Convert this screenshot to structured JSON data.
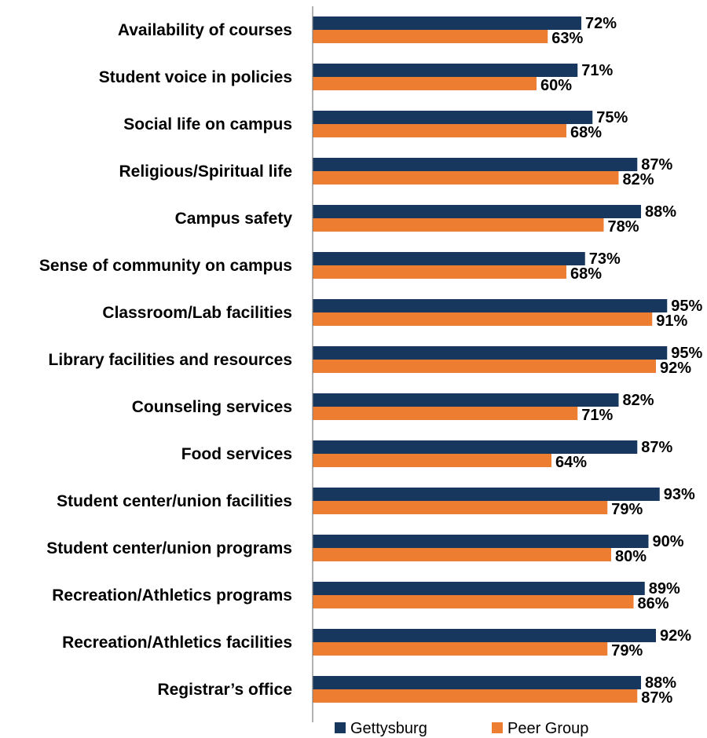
{
  "chart_data": {
    "type": "bar",
    "orientation": "horizontal",
    "categories": [
      "Availability of courses",
      "Student voice in policies",
      "Social life on campus",
      "Religious/Spiritual life",
      "Campus safety",
      "Sense of community on campus",
      "Classroom/Lab facilities",
      "Library facilities and resources",
      "Counseling services",
      "Food services",
      "Student center/union facilities",
      "Student center/union programs",
      "Recreation/Athletics programs",
      "Recreation/Athletics facilities",
      "Registrar’s office"
    ],
    "series": [
      {
        "name": "Gettysburg",
        "color": "#17375e",
        "values": [
          72,
          71,
          75,
          87,
          88,
          73,
          95,
          95,
          82,
          87,
          93,
          90,
          89,
          92,
          88
        ],
        "labels": [
          "72%",
          "71%",
          "75%",
          "87%",
          "88%",
          "73%",
          "95%",
          "95%",
          "82%",
          "87%",
          "93%",
          "90%",
          "89%",
          "92%",
          "88%"
        ]
      },
      {
        "name": "Peer Group",
        "color": "#ed7d31",
        "values": [
          63,
          60,
          68,
          82,
          78,
          68,
          91,
          92,
          71,
          64,
          79,
          80,
          86,
          79,
          87
        ],
        "labels": [
          "63%",
          "60%",
          "68%",
          "82%",
          "78%",
          "68%",
          "91%",
          "92%",
          "71%",
          "64%",
          "79%",
          "80%",
          "86%",
          "79%",
          "87%"
        ]
      }
    ],
    "xlim": [
      0,
      100
    ],
    "grid": false,
    "legend_position": "bottom"
  }
}
